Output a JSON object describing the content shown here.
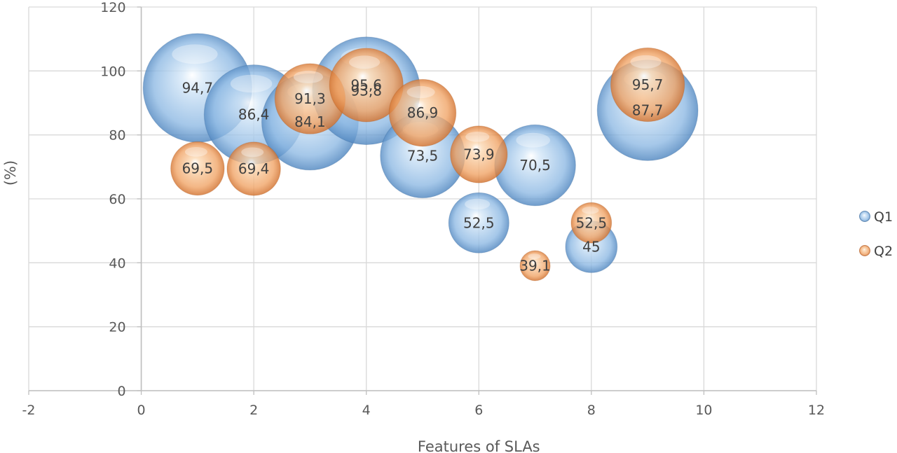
{
  "chart_data": {
    "type": "bubble",
    "title": "",
    "xlabel": "Features of SLAs",
    "ylabel": "(%)",
    "xlim": [
      -2,
      12
    ],
    "ylim": [
      0,
      120
    ],
    "xticks": [
      -2,
      0,
      2,
      4,
      6,
      8,
      10,
      12
    ],
    "yticks": [
      0,
      20,
      40,
      60,
      80,
      100,
      120
    ],
    "grid": true,
    "legend_position": "right",
    "series": [
      {
        "name": "Q1",
        "color": "#5b9bd5",
        "points": [
          {
            "x": 1,
            "y": 94.7,
            "label": "94,7"
          },
          {
            "x": 2,
            "y": 86.4,
            "label": "86,4"
          },
          {
            "x": 3,
            "y": 84.1,
            "label": "84,1"
          },
          {
            "x": 4,
            "y": 93.8,
            "label": "93,8"
          },
          {
            "x": 5,
            "y": 73.5,
            "label": "73,5"
          },
          {
            "x": 6,
            "y": 52.5,
            "label": "52,5"
          },
          {
            "x": 7,
            "y": 70.5,
            "label": "70,5"
          },
          {
            "x": 8,
            "y": 45,
            "label": "45"
          },
          {
            "x": 9,
            "y": 87.7,
            "label": "87,7"
          }
        ]
      },
      {
        "name": "Q2",
        "color": "#ed7d31",
        "points": [
          {
            "x": 1,
            "y": 69.5,
            "label": "69,5"
          },
          {
            "x": 2,
            "y": 69.4,
            "label": "69,4"
          },
          {
            "x": 3,
            "y": 91.3,
            "label": "91,3"
          },
          {
            "x": 4,
            "y": 95.6,
            "label": "95,6"
          },
          {
            "x": 5,
            "y": 86.9,
            "label": "86,9"
          },
          {
            "x": 6,
            "y": 73.9,
            "label": "73,9"
          },
          {
            "x": 7,
            "y": 39.1,
            "label": "39,1"
          },
          {
            "x": 8,
            "y": 52.5,
            "label": "52,5"
          },
          {
            "x": 9,
            "y": 95.7,
            "label": "95,7"
          }
        ]
      }
    ]
  }
}
